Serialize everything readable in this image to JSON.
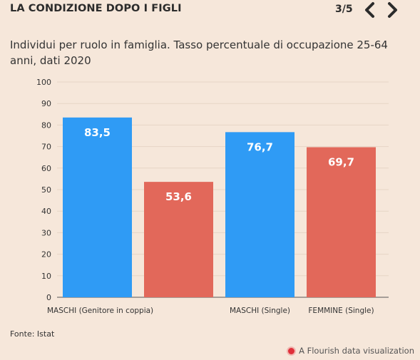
{
  "header": {
    "title": "LA CONDIZIONE DOPO I FIGLI",
    "pager": "3/5"
  },
  "colors": {
    "background": "#f6e7da",
    "male": "#2f9bf5",
    "female": "#e2685a",
    "gridline": "#e6d5c6",
    "text": "#333333"
  },
  "icons": {
    "prev": "chevron-left-icon",
    "next": "chevron-right-icon",
    "flourish": "flourish-dot-icon"
  },
  "subtitle": "Individui per ruolo in famiglia. Tasso percentuale di occupazione 25-64 anni, dati 2020",
  "source": "Fonte: Istat",
  "credit": "A Flourish data visualization",
  "chart_data": {
    "type": "bar",
    "title": "Individui per ruolo in famiglia. Tasso percentuale di occupazione 25-64 anni, dati 2020",
    "xlabel": "",
    "ylabel": "",
    "ylim": [
      0,
      100
    ],
    "yticks": [
      0,
      10,
      20,
      30,
      40,
      50,
      60,
      70,
      80,
      90,
      100
    ],
    "grid": true,
    "categories": [
      "MASCHI (Genitore in coppia)",
      "",
      "MASCHI (Single)",
      "FEMMINE (Single)"
    ],
    "values": [
      83.5,
      53.6,
      76.7,
      69.7
    ],
    "labels": [
      "83,5",
      "53,6",
      "76,7",
      "69,7"
    ],
    "bar_colors": [
      "male",
      "female",
      "male",
      "female"
    ]
  }
}
